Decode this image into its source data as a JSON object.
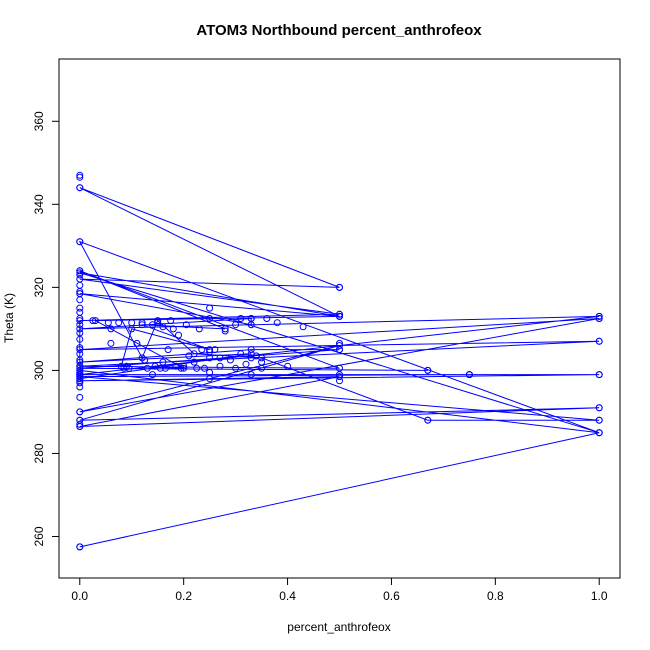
{
  "chart_data": {
    "type": "line",
    "title": "ATOM3 Northbound percent_anthrofeox",
    "xlabel": "percent_anthrofeox",
    "ylabel": "Theta (K)",
    "xlim": [
      -0.04,
      1.04
    ],
    "ylim": [
      250,
      375
    ],
    "xticks": [
      0.0,
      0.2,
      0.4,
      0.6,
      0.8,
      1.0
    ],
    "xtick_labels": [
      "0.0",
      "0.2",
      "0.4",
      "0.6",
      "0.8",
      "1.0"
    ],
    "yticks": [
      260,
      280,
      300,
      320,
      340,
      360
    ],
    "ytick_labels": [
      "260",
      "280",
      "300",
      "320",
      "340",
      "360"
    ],
    "grid": false,
    "series": [
      {
        "color": "#0000ff",
        "marker": "open-circle",
        "points": [
          [
            0.0,
            257.5
          ],
          [
            1.0,
            285.0
          ],
          [
            0.0,
            300.0
          ],
          [
            0.0,
            312.0
          ],
          [
            0.5,
            313.5
          ],
          [
            0.0,
            322.0
          ],
          [
            0.5,
            320.0
          ],
          [
            0.0,
            344.0
          ],
          [
            0.5,
            313.0
          ],
          [
            0.0,
            318.5
          ],
          [
            0.33,
            311.0
          ],
          [
            0.33,
            312.5
          ],
          [
            0.0,
            310.0
          ],
          [
            1.0,
            313.0
          ],
          [
            0.0,
            299.0
          ],
          [
            1.0,
            299.0
          ],
          [
            0.0,
            297.5
          ],
          [
            0.5,
            298.5
          ],
          [
            0.0,
            286.5
          ],
          [
            1.0,
            291.0
          ],
          [
            0.0,
            288.0
          ],
          [
            0.5,
            306.0
          ],
          [
            0.0,
            290.0
          ],
          [
            1.0,
            312.5
          ],
          [
            0.0,
            305.0
          ],
          [
            1.0,
            307.0
          ],
          [
            0.0,
            301.0
          ],
          [
            0.5,
            300.5
          ],
          [
            0.0,
            324.0
          ],
          [
            0.28,
            310.0
          ],
          [
            0.12,
            311.0
          ],
          [
            0.25,
            305.0
          ],
          [
            0.1,
            310.0
          ],
          [
            0.08,
            301.0
          ],
          [
            0.2,
            300.5
          ],
          [
            0.03,
            312.0
          ],
          [
            0.5,
            313.0
          ],
          [
            0.0,
            323.5
          ],
          [
            1.0,
            285.0
          ],
          [
            0.0,
            331.0
          ],
          [
            0.12,
            303.0
          ],
          [
            0.15,
            312.0
          ],
          [
            0.22,
            304.0
          ],
          [
            0.35,
            303.0
          ],
          [
            0.67,
            288.0
          ],
          [
            1.0,
            288.0
          ],
          [
            0.0,
            298.5
          ],
          [
            0.75,
            299.0
          ],
          [
            0.75,
            299.0
          ],
          [
            0.0,
            299.0
          ],
          [
            0.0,
            298.0
          ],
          [
            0.33,
            304.0
          ],
          [
            0.0,
            302.0
          ],
          [
            0.33,
            305.0
          ],
          [
            0.5,
            305.0
          ],
          [
            0.0,
            300.5
          ],
          [
            0.67,
            300.0
          ]
        ]
      }
    ],
    "extra_markers": [
      [
        0.0,
        347.0
      ],
      [
        0.0,
        346.5
      ],
      [
        0.0,
        344.0
      ],
      [
        0.0,
        331.0
      ],
      [
        0.0,
        324.0
      ],
      [
        0.0,
        323.0
      ],
      [
        0.0,
        320.5
      ],
      [
        0.0,
        319.0
      ],
      [
        0.0,
        318.5
      ],
      [
        0.0,
        317.0
      ],
      [
        0.0,
        315.0
      ],
      [
        0.0,
        314.0
      ],
      [
        0.0,
        312.5
      ],
      [
        0.0,
        311.0
      ],
      [
        0.0,
        309.0
      ],
      [
        0.0,
        307.5
      ],
      [
        0.0,
        305.5
      ],
      [
        0.0,
        304.0
      ],
      [
        0.0,
        302.5
      ],
      [
        0.0,
        301.0
      ],
      [
        0.0,
        300.0
      ],
      [
        0.0,
        299.5
      ],
      [
        0.0,
        299.0
      ],
      [
        0.0,
        298.5
      ],
      [
        0.0,
        298.0
      ],
      [
        0.0,
        297.5
      ],
      [
        0.0,
        297.0
      ],
      [
        0.0,
        296.0
      ],
      [
        0.0,
        293.5
      ],
      [
        0.0,
        290.0
      ],
      [
        0.0,
        288.0
      ],
      [
        0.0,
        287.0
      ],
      [
        0.0,
        286.5
      ],
      [
        0.0,
        257.5
      ],
      [
        0.025,
        312.0
      ],
      [
        0.055,
        311.5
      ],
      [
        0.06,
        310.0
      ],
      [
        0.06,
        306.5
      ],
      [
        0.075,
        311.5
      ],
      [
        0.085,
        300.5
      ],
      [
        0.09,
        301.0
      ],
      [
        0.095,
        300.5
      ],
      [
        0.1,
        311.5
      ],
      [
        0.11,
        306.5
      ],
      [
        0.12,
        311.5
      ],
      [
        0.125,
        302.5
      ],
      [
        0.13,
        300.5
      ],
      [
        0.14,
        311.0
      ],
      [
        0.14,
        299.0
      ],
      [
        0.145,
        301.0
      ],
      [
        0.15,
        311.5
      ],
      [
        0.155,
        300.5
      ],
      [
        0.16,
        310.5
      ],
      [
        0.16,
        302.0
      ],
      [
        0.165,
        300.5
      ],
      [
        0.17,
        305.0
      ],
      [
        0.175,
        312.0
      ],
      [
        0.18,
        310.0
      ],
      [
        0.185,
        301.0
      ],
      [
        0.19,
        308.5
      ],
      [
        0.195,
        300.5
      ],
      [
        0.2,
        301.0
      ],
      [
        0.205,
        311.0
      ],
      [
        0.21,
        303.5
      ],
      [
        0.22,
        302.0
      ],
      [
        0.225,
        300.5
      ],
      [
        0.23,
        310.0
      ],
      [
        0.235,
        305.0
      ],
      [
        0.24,
        300.5
      ],
      [
        0.25,
        315.0
      ],
      [
        0.25,
        312.5
      ],
      [
        0.25,
        304.5
      ],
      [
        0.25,
        303.0
      ],
      [
        0.25,
        299.5
      ],
      [
        0.25,
        298.0
      ],
      [
        0.26,
        305.0
      ],
      [
        0.27,
        301.0
      ],
      [
        0.27,
        303.0
      ],
      [
        0.28,
        309.5
      ],
      [
        0.29,
        302.5
      ],
      [
        0.3,
        311.0
      ],
      [
        0.3,
        300.5
      ],
      [
        0.31,
        312.5
      ],
      [
        0.31,
        304.0
      ],
      [
        0.32,
        301.5
      ],
      [
        0.33,
        312.5
      ],
      [
        0.33,
        311.0
      ],
      [
        0.33,
        303.0
      ],
      [
        0.33,
        299.0
      ],
      [
        0.34,
        303.5
      ],
      [
        0.35,
        302.0
      ],
      [
        0.35,
        300.5
      ],
      [
        0.36,
        312.5
      ],
      [
        0.38,
        311.5
      ],
      [
        0.4,
        301.0
      ],
      [
        0.43,
        310.5
      ],
      [
        0.5,
        320.0
      ],
      [
        0.5,
        313.5
      ],
      [
        0.5,
        313.0
      ],
      [
        0.5,
        306.5
      ],
      [
        0.5,
        305.0
      ],
      [
        0.5,
        299.0
      ],
      [
        0.5,
        297.5
      ],
      [
        0.67,
        300.0
      ],
      [
        0.67,
        288.0
      ],
      [
        0.75,
        299.0
      ],
      [
        1.0,
        313.0
      ],
      [
        1.0,
        312.5
      ],
      [
        1.0,
        307.0
      ],
      [
        1.0,
        299.0
      ],
      [
        1.0,
        291.0
      ],
      [
        1.0,
        288.0
      ],
      [
        1.0,
        285.0
      ]
    ]
  }
}
